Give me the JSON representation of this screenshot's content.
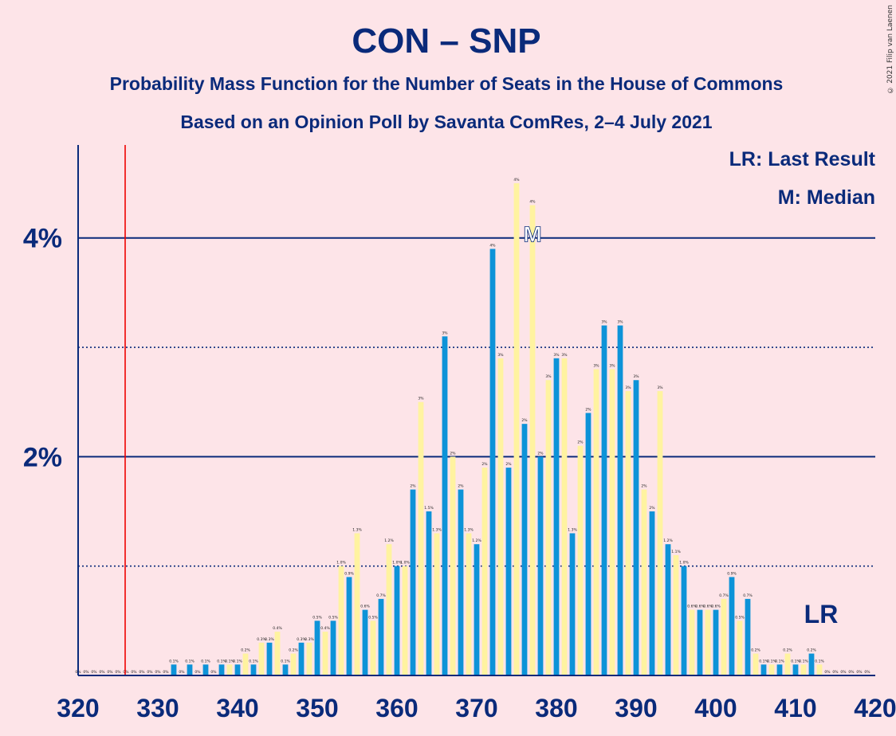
{
  "copyright": "© 2021 Filip van Laenen",
  "chart_data": {
    "type": "bar",
    "title": "CON – SNP",
    "subtitle": "Probability Mass Function for the Number of Seats in the House of Commons",
    "subtitle2": "Based on an Opinion Poll by Savanta ComRes, 2–4 July 2021",
    "legend": [
      "LR: Last Result",
      "M: Median"
    ],
    "lr_label": "LR",
    "median_label": "M",
    "last_result": 326,
    "median": 377,
    "xlim": [
      320,
      420
    ],
    "ylim": [
      0,
      4.85
    ],
    "x_ticks": [
      "320",
      "330",
      "340",
      "350",
      "360",
      "370",
      "380",
      "390",
      "400",
      "410",
      "420"
    ],
    "y_ticks": [
      {
        "value": 2,
        "label": "2%"
      },
      {
        "value": 4,
        "label": "4%"
      }
    ],
    "minor_gridlines": [
      1,
      3
    ],
    "colors": {
      "blue": "#0d93d8",
      "yellow": "#fff3a0",
      "lr_line": "#ee0000",
      "navy": "#0a2a7a",
      "background": "#fde4e8"
    },
    "x": [
      320,
      321,
      322,
      323,
      324,
      325,
      326,
      327,
      328,
      329,
      330,
      331,
      332,
      333,
      334,
      335,
      336,
      337,
      338,
      339,
      340,
      341,
      342,
      343,
      344,
      345,
      346,
      347,
      348,
      349,
      350,
      351,
      352,
      353,
      354,
      355,
      356,
      357,
      358,
      359,
      360,
      361,
      362,
      363,
      364,
      365,
      366,
      367,
      368,
      369,
      370,
      371,
      372,
      373,
      374,
      375,
      376,
      377,
      378,
      379,
      380,
      381,
      382,
      383,
      384,
      385,
      386,
      387,
      388,
      389,
      390,
      391,
      392,
      393,
      394,
      395,
      396,
      397,
      398,
      399,
      400,
      401,
      402,
      403,
      404,
      405,
      406,
      407,
      408,
      409,
      410,
      411,
      412,
      413,
      414,
      415,
      416,
      417,
      418,
      419
    ],
    "values": [
      0,
      0,
      0,
      0,
      0,
      0,
      0,
      0,
      0,
      0,
      0,
      0,
      0.1,
      0,
      0.1,
      0,
      0.1,
      0,
      0.1,
      0.1,
      0.1,
      0.2,
      0.1,
      0.3,
      0.3,
      0.4,
      0.1,
      0.2,
      0.3,
      0.3,
      0.5,
      0.4,
      0.5,
      1.0,
      0.9,
      1.3,
      0.6,
      0.5,
      0.7,
      1.2,
      1.0,
      1.0,
      1.7,
      2.5,
      1.5,
      1.3,
      3.1,
      2.0,
      1.7,
      1.3,
      1.2,
      1.9,
      3.9,
      2.9,
      1.9,
      4.5,
      2.3,
      4.3,
      2.0,
      2.7,
      2.9,
      2.9,
      1.3,
      2.1,
      2.4,
      2.8,
      3.2,
      2.8,
      3.2,
      2.6,
      2.7,
      1.7,
      1.5,
      2.6,
      1.2,
      1.1,
      1.0,
      0.6,
      0.6,
      0.6,
      0.6,
      0.7,
      0.9,
      0.5,
      0.7,
      0.2,
      0.1,
      0.1,
      0.1,
      0.2,
      0.1,
      0.1,
      0.2,
      0.1,
      0,
      0,
      0,
      0,
      0,
      0
    ],
    "value_labels": [
      "0%",
      "0%",
      "0%",
      "0%",
      "0%",
      "0%",
      "0%",
      "0%",
      "0%",
      "0%",
      "0%",
      "0%",
      "0.1%",
      "0%",
      "0.1%",
      "0%",
      "0.1%",
      "0%",
      "0.1%",
      "0.1%",
      "0.1%",
      "0.2%",
      "0.1%",
      "0.3%",
      "0.3%",
      "0.4%",
      "0.1%",
      "0.2%",
      "0.3%",
      "0.3%",
      "0.5%",
      "0.4%",
      "0.5%",
      "1.0%",
      "0.9%",
      "1.3%",
      "0.6%",
      "0.5%",
      "0.7%",
      "1.2%",
      "1.0%",
      "1.0%",
      "2%",
      "3%",
      "1.5%",
      "1.3%",
      "3%",
      "2%",
      "2%",
      "1.3%",
      "1.2%",
      "2%",
      "4%",
      "3%",
      "2%",
      "4%",
      "2%",
      "4%",
      "2%",
      "3%",
      "3%",
      "3%",
      "1.3%",
      "2%",
      "2%",
      "3%",
      "3%",
      "3%",
      "3%",
      "3%",
      "3%",
      "2%",
      "2%",
      "3%",
      "1.2%",
      "1.1%",
      "1.0%",
      "0.6%",
      "0.6%",
      "0.6%",
      "0.6%",
      "0.7%",
      "0.9%",
      "0.5%",
      "0.7%",
      "0.2%",
      "0.1%",
      "0.1%",
      "0.1%",
      "0.2%",
      "0.1%",
      "0.1%",
      "0.2%",
      "0.1%",
      "0%",
      "0%",
      "0%",
      "0%",
      "0%",
      "0%"
    ]
  }
}
